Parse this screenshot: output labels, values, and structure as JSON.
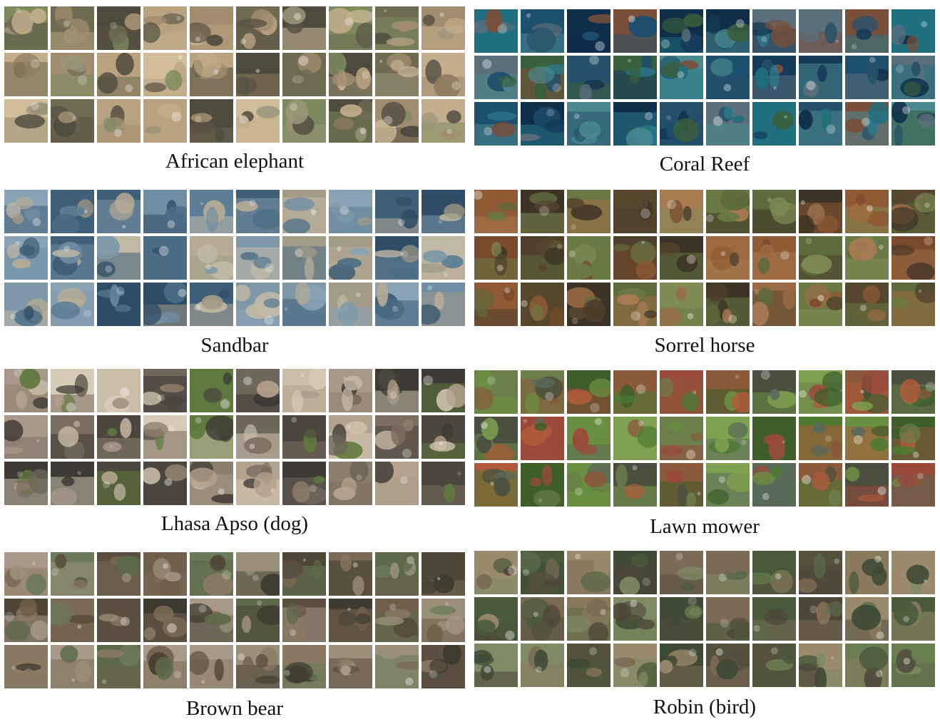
{
  "panels": [
    {
      "caption": "African elephant",
      "palette": [
        "#8c7a5c",
        "#a08d6e",
        "#6f6a52",
        "#b8a27f",
        "#5b5446",
        "#c2ae8c",
        "#7d8a5e",
        "#9a9478",
        "#4f4b3e",
        "#d0bd9a"
      ]
    },
    {
      "caption": "Coral Reef",
      "palette": [
        "#1d4f6e",
        "#2b7a8c",
        "#3a5f3c",
        "#153b5a",
        "#5b6f7a",
        "#1f6f7f",
        "#7a4f3a",
        "#26516a",
        "#0f2e4a",
        "#4a8a8f"
      ]
    },
    {
      "caption": "Sandbar",
      "palette": [
        "#6f8da3",
        "#3f5e78",
        "#a39a88",
        "#8aa3b4",
        "#5c7e96",
        "#b5aa95",
        "#4a6d85",
        "#c1b8a5",
        "#7f98a8",
        "#2f4d66"
      ]
    },
    {
      "caption": "Sorrel horse",
      "palette": [
        "#7a4a2c",
        "#5e6b3c",
        "#8f5a34",
        "#4f3f2c",
        "#9c6b44",
        "#6a7a44",
        "#3d3326",
        "#a87a52",
        "#56482f",
        "#7f8b55"
      ]
    },
    {
      "caption": "Lhasa Apso (dog)",
      "palette": [
        "#a7998a",
        "#6f665c",
        "#c9bca9",
        "#4d463f",
        "#8d7f6e",
        "#d6cab8",
        "#5f7a3e",
        "#b3a28d",
        "#7b6e60",
        "#3f3a35"
      ]
    },
    {
      "caption": "Lawn mower",
      "palette": [
        "#4f7a34",
        "#6b8f42",
        "#8a5a3a",
        "#3f5e2c",
        "#9a4a3a",
        "#5a6a5a",
        "#7fa050",
        "#b05a3a",
        "#4a4f3f",
        "#6a7f4a"
      ]
    },
    {
      "caption": "Brown bear",
      "palette": [
        "#6f5f4c",
        "#8a7a64",
        "#4f4638",
        "#9a8f7a",
        "#5c6a4a",
        "#7a6a56",
        "#3f3a30",
        "#a8998a",
        "#6a7a5a",
        "#5a4f40"
      ]
    },
    {
      "caption": "Robin (bird)",
      "palette": [
        "#5a6a4a",
        "#7a6a56",
        "#4a5a3c",
        "#8a7a5c",
        "#3f4a36",
        "#9a8a6c",
        "#6a7f4f",
        "#56503f",
        "#7f8a66",
        "#4f463a"
      ]
    }
  ]
}
